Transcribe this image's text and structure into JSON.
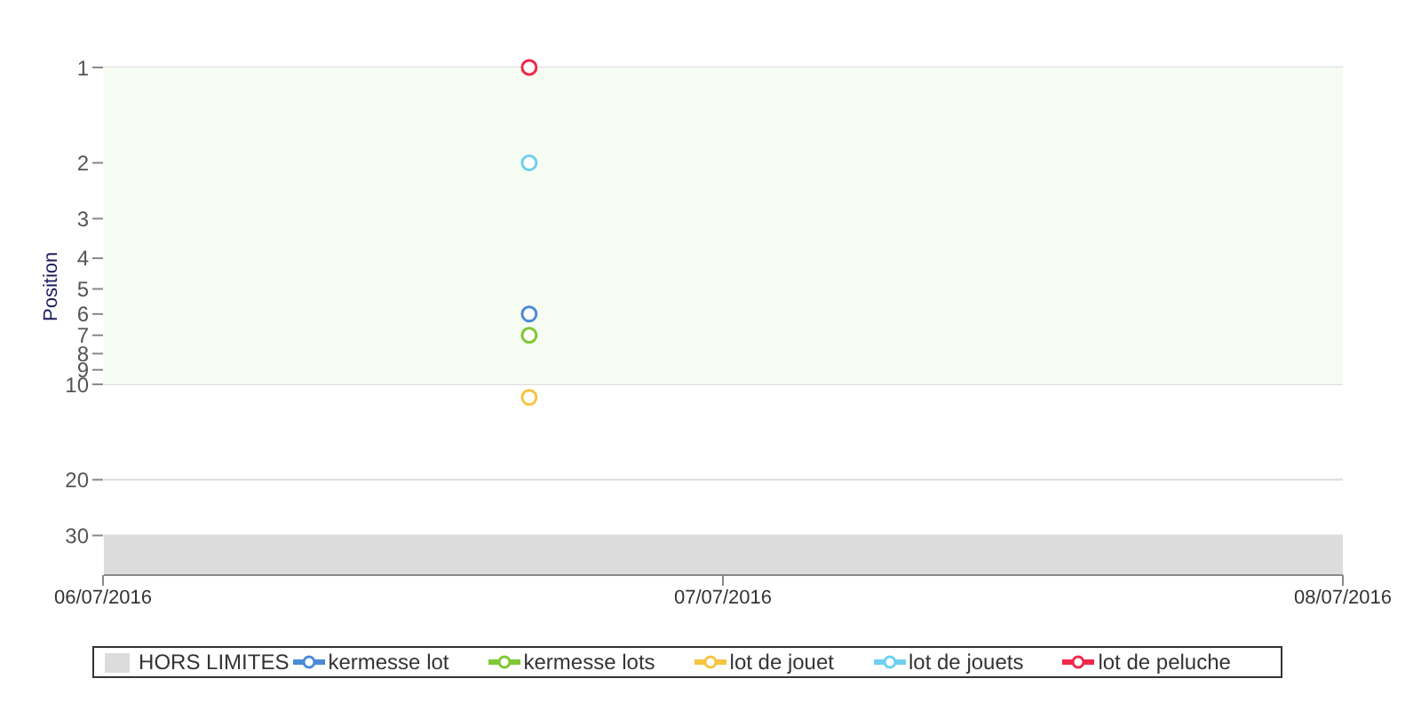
{
  "chart_data": {
    "type": "line",
    "ylabel": "Position",
    "log": "y",
    "ylim": [
      40,
      1
    ],
    "yticks": [
      1,
      2,
      3,
      4,
      5,
      6,
      7,
      8,
      9,
      10,
      20,
      30
    ],
    "xlim": [
      "2016-07-06",
      "2016-07-08"
    ],
    "xticks": [
      {
        "value": "2016-07-06",
        "label": "06/07/2016"
      },
      {
        "value": "2016-07-07",
        "label": "07/07/2016"
      },
      {
        "value": "2016-07-08",
        "label": "08/07/2016"
      }
    ],
    "grid": "y",
    "marker": "circle",
    "legend": "bottom",
    "x": [
      "2016-07-06T16:30"
    ],
    "bands": [
      {
        "axis": "y",
        "from": 1,
        "to": 10,
        "color": "#f7fcf3"
      },
      {
        "axis": "y",
        "from": 30,
        "to": 40,
        "label": "HORS LIMITES",
        "color": "#dcdcdc"
      }
    ],
    "series": [
      {
        "name": "kermesse lot",
        "color": "#4a8ad8",
        "values": [
          6
        ]
      },
      {
        "name": "kermesse lots",
        "color": "#7ec832",
        "values": [
          7
        ]
      },
      {
        "name": "lot de jouet",
        "color": "#f8c341",
        "values": [
          11
        ]
      },
      {
        "name": "lot de jouets",
        "color": "#6dcff0",
        "values": [
          2
        ]
      },
      {
        "name": "lot de peluche",
        "color": "#f0284a",
        "values": [
          1
        ]
      }
    ]
  }
}
